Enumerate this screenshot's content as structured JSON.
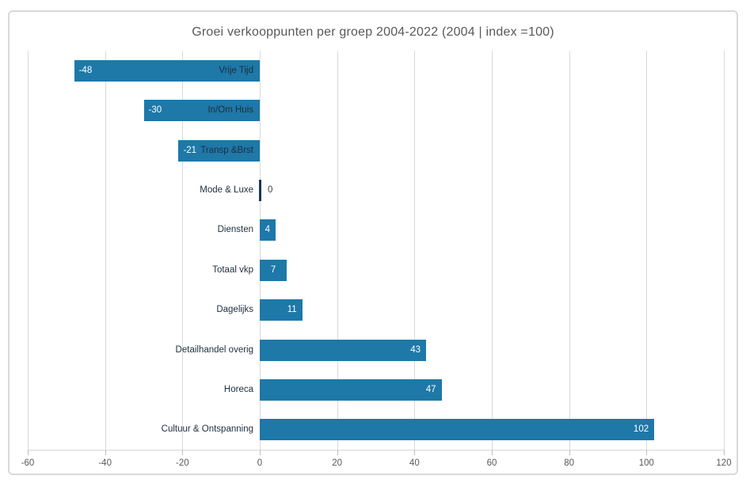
{
  "chart_data": {
    "type": "bar",
    "orientation": "horizontal",
    "title": "Groei verkooppunten per groep 2004-2022 (2004 | index =100)",
    "xlabel": "",
    "ylabel": "",
    "categories": [
      "Vrije Tijd",
      "In/Om Huis",
      "Transp &Brst",
      "Mode & Luxe",
      "Diensten",
      "Totaal vkp",
      "Dagelijks",
      "Detailhandel overig",
      "Horeca",
      "Cultuur & Ontspanning"
    ],
    "values": [
      -48,
      -30,
      -21,
      0,
      4,
      7,
      11,
      43,
      47,
      102
    ],
    "xlim": [
      -60,
      120
    ],
    "xticks": [
      -60,
      -40,
      -20,
      0,
      20,
      40,
      60,
      80,
      100,
      120
    ],
    "grid": true,
    "legend": false,
    "value_labels": "inside-end"
  },
  "colors": {
    "bar": "#1e78a8",
    "zero_bar": "#17375e",
    "gridline": "#d9d9d9",
    "tick": "#bfbfbf",
    "axis_text": "#595959",
    "category_text": "#1f2e3e",
    "value_text_inside": "#ffffff",
    "value_text_outside": "#404040",
    "title_text": "#595959",
    "frame_border": "#d9d9d9"
  }
}
